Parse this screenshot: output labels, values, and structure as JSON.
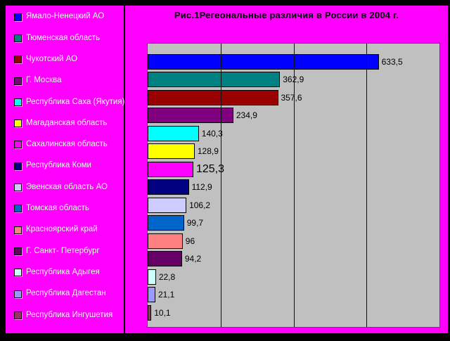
{
  "chart_data": {
    "type": "bar",
    "orientation": "horizontal",
    "title": "Рис.1Регеональные различия в России в 2004 г.",
    "categories": [
      "Ямало-Ненецкий АО",
      "Тюменская область",
      "Чукотский АО",
      "Г. Москва",
      "Республика Саха (Якутия)",
      "Магаданская область",
      "Сахалинская область",
      "Республика Коми",
      "Эвенская область АО",
      "Томская область",
      "Красноярский край",
      "Г. Санкт- Петербург",
      "Республика Адыгея",
      "Республика Дагестан",
      "Республика Ингушетия"
    ],
    "values": [
      633.5,
      362.9,
      357.6,
      234.9,
      140.3,
      128.9,
      125.3,
      112.9,
      106.2,
      99.7,
      96,
      94.2,
      22.8,
      21.1,
      10.1
    ],
    "value_labels": [
      "633,5",
      "362,9",
      "357,6",
      "234,9",
      "140,3",
      "128,9",
      "125,3",
      "112,9",
      "106,2",
      "99,7",
      "96",
      "94,2",
      "22,8",
      "21,1",
      "10,1"
    ],
    "large_label_index": 6,
    "point_colors": [
      "#0000FF",
      "#008080",
      "#990000",
      "#800080",
      "#00FFFF",
      "#FFFF00",
      "#FF00FF",
      "#000080",
      "#CCCCFF",
      "#0066CC",
      "#FF8080",
      "#660066",
      "#CCFFFF",
      "#9999FF",
      "#993366"
    ],
    "xlim": [
      0,
      800
    ],
    "gridline_values": [
      200,
      400,
      600
    ],
    "grid": true,
    "legend_position": "left",
    "colors": {
      "chart_background": "#FF00FF",
      "plot_background": "#C0C0C0",
      "frame": "#000000",
      "legend_text": "#FFFFFF",
      "value_label_text": "#000000",
      "title_text": "#000000"
    }
  }
}
